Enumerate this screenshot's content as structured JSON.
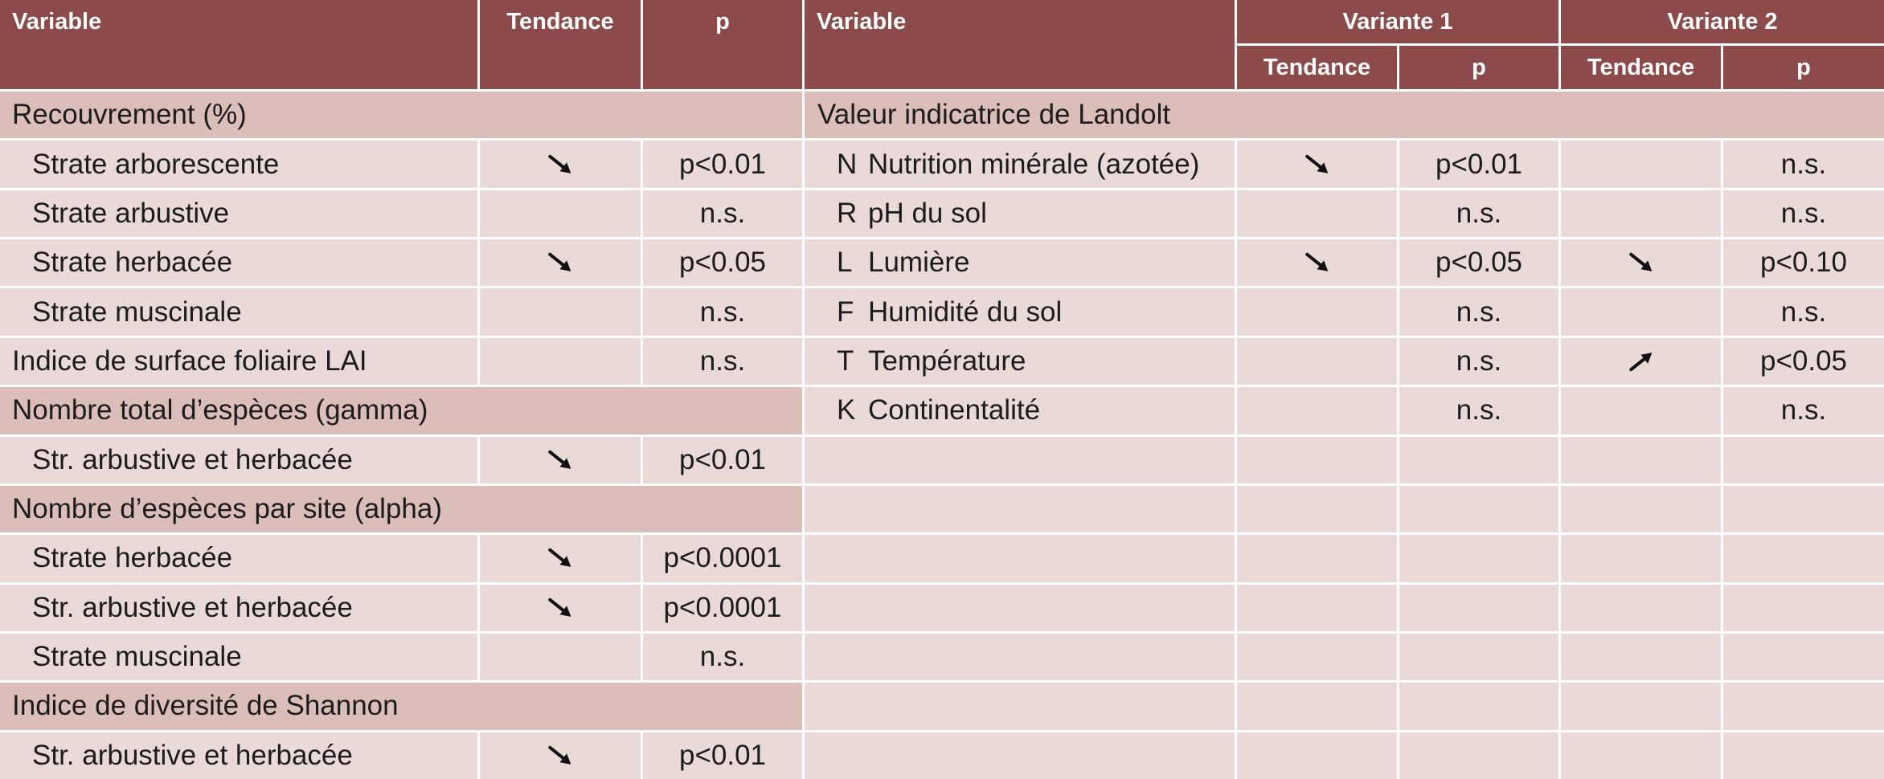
{
  "header": {
    "left": {
      "variable": "Variable",
      "tendance": "Tendance",
      "p": "p"
    },
    "right": {
      "variable": "Variable",
      "variante_1": "Variante 1",
      "variante_2": "Variante 2",
      "v1_tendance": "Tendance",
      "v1_p": "p",
      "v2_tendance": "Tendance",
      "v2_p": "p"
    }
  },
  "left_table": {
    "rows": [
      {
        "section": "Recouvrement (%)"
      },
      {
        "variable": "Strate arborescente",
        "tendance_icon": "arrow-down-right-icon",
        "p": "p<0.01"
      },
      {
        "variable": "Strate arbustive",
        "p": "n.s."
      },
      {
        "variable": "Strate herbacée",
        "tendance_icon": "arrow-down-right-icon",
        "p": "p<0.05"
      },
      {
        "variable": "Strate muscinale",
        "p": "n.s."
      },
      {
        "variable": "Indice de surface foliaire LAI",
        "p": "n.s."
      },
      {
        "section": "Nombre total d’espèces (gamma)"
      },
      {
        "variable": "Str. arbustive et herbacée",
        "tendance_icon": "arrow-down-right-icon",
        "p": "p<0.01"
      },
      {
        "section": "Nombre d’espèces par site (alpha)"
      },
      {
        "variable": "Strate herbacée",
        "tendance_icon": "arrow-down-right-icon",
        "p": "p<0.0001"
      },
      {
        "variable": "Str. arbustive et herbacée",
        "tendance_icon": "arrow-down-right-icon",
        "p": "p<0.0001"
      },
      {
        "variable": "Strate muscinale",
        "p": "n.s."
      },
      {
        "section": "Indice de diversité de Shannon"
      },
      {
        "variable": "Str. arbustive et herbacée",
        "tendance_icon": "arrow-down-right-icon",
        "p": "p<0.01"
      }
    ]
  },
  "right_table": {
    "section": "Valeur indicatrice de Landolt",
    "rows": [
      {
        "code": "N",
        "variable": "Nutrition minérale (azotée)",
        "v1_tendance_icon": "arrow-down-right-icon",
        "v1_p": "p<0.01",
        "v2_p": "n.s."
      },
      {
        "code": "R",
        "variable": "pH du sol",
        "v1_p": "n.s.",
        "v2_p": "n.s."
      },
      {
        "code": "L",
        "variable": "Lumière",
        "v1_tendance_icon": "arrow-down-right-icon",
        "v1_p": "p<0.05",
        "v2_tendance_icon": "arrow-down-right-icon",
        "v2_p": "p<0.10"
      },
      {
        "code": "F",
        "variable": "Humidité du sol",
        "v1_p": "n.s.",
        "v2_p": "n.s."
      },
      {
        "code": "T",
        "variable": "Température",
        "v1_p": "n.s.",
        "v2_tendance_icon": "arrow-up-right-icon",
        "v2_p": "p<0.05"
      },
      {
        "code": "K",
        "variable": "Continentalité",
        "v1_p": "n.s.",
        "v2_p": "n.s."
      }
    ]
  },
  "colors": {
    "header": "#8C4A4A",
    "section": "#DBBEBA",
    "cell": "#E9DAD8",
    "grid": "#FFFFFF"
  }
}
